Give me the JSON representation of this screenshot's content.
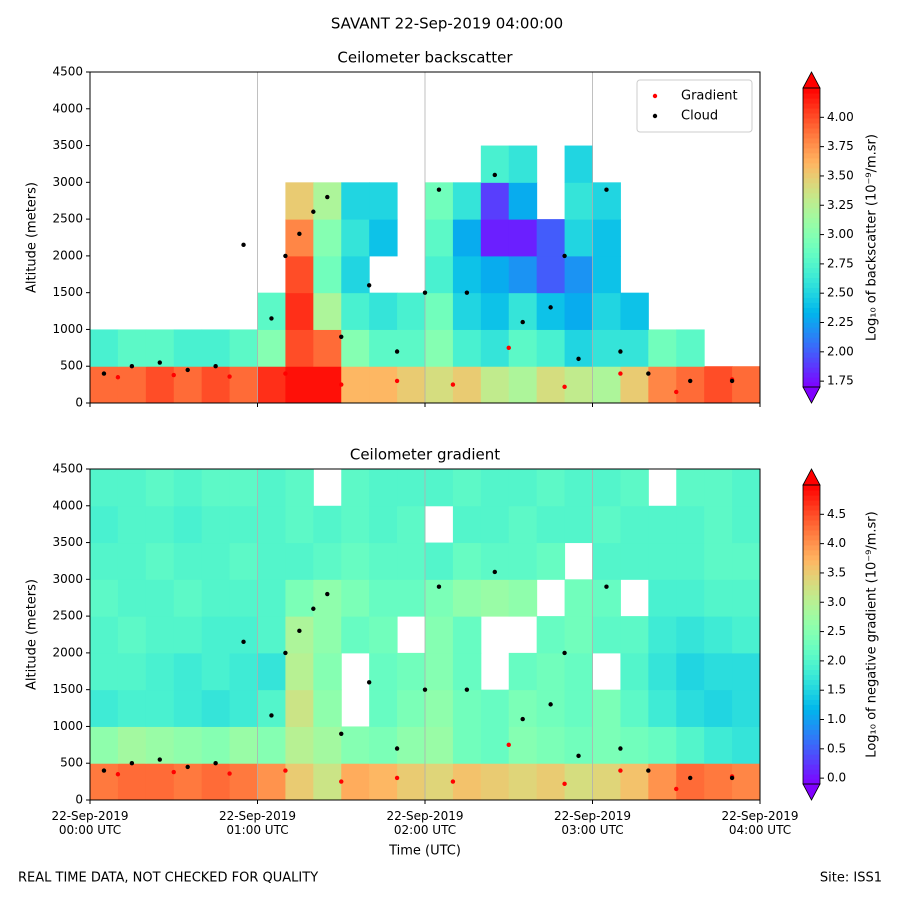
{
  "title": "SAVANT 22-Sep-2019 04:00:00",
  "footer_left": "REAL TIME DATA, NOT CHECKED FOR QUALITY",
  "footer_right": "Site: ISS1",
  "chart_data": [
    {
      "type": "heatmap",
      "title": "Ceilometer backscatter",
      "ylabel": "Altitude (meters)",
      "colormap": "rainbow",
      "colorbar_label": "Log₁₀ of backscatter (10⁻⁹/m.sr)",
      "zlim": [
        1.7,
        4.25
      ],
      "zticks": [
        1.75,
        2.0,
        2.25,
        2.5,
        2.75,
        3.0,
        3.25,
        3.5,
        3.75,
        4.0
      ],
      "xlim": [
        "2019-09-22T00:00",
        "2019-09-22T04:00"
      ],
      "xticks": [
        "2019-09-22T00:00",
        "2019-09-22T01:00",
        "2019-09-22T02:00",
        "2019-09-22T03:00",
        "2019-09-22T04:00"
      ],
      "grid": "x",
      "legend": "upper right",
      "ylim": [
        0,
        4500
      ],
      "yticks": [
        0,
        500,
        1000,
        1500,
        2000,
        2500,
        3000,
        3500,
        4000,
        4500
      ],
      "x": [
        "2019-09-22T00:00",
        "2019-09-22T00:10",
        "2019-09-22T00:20",
        "2019-09-22T00:30",
        "2019-09-22T00:40",
        "2019-09-22T00:50",
        "2019-09-22T01:00",
        "2019-09-22T01:10",
        "2019-09-22T01:20",
        "2019-09-22T01:30",
        "2019-09-22T01:40",
        "2019-09-22T01:50",
        "2019-09-22T02:00",
        "2019-09-22T02:10",
        "2019-09-22T02:20",
        "2019-09-22T02:30",
        "2019-09-22T02:40",
        "2019-09-22T02:50",
        "2019-09-22T03:00",
        "2019-09-22T03:10",
        "2019-09-22T03:20",
        "2019-09-22T03:30",
        "2019-09-22T03:40",
        "2019-09-22T03:50"
      ],
      "y": [
        0,
        500,
        1000,
        1500,
        2000,
        2500,
        3000,
        3500,
        4000
      ],
      "z": [
        [
          3.9,
          3.9,
          4.0,
          3.9,
          4.0,
          3.9,
          4.1,
          4.2,
          4.2,
          3.6,
          3.6,
          3.5,
          3.4,
          3.5,
          3.3,
          3.2,
          3.4,
          3.3,
          3.2,
          3.5,
          3.8,
          3.9,
          4.0,
          3.9
        ],
        [
          2.7,
          2.8,
          2.8,
          2.7,
          2.7,
          2.8,
          3.0,
          4.0,
          3.9,
          3.0,
          2.8,
          2.8,
          3.0,
          2.7,
          2.6,
          2.8,
          2.7,
          2.5,
          2.6,
          2.6,
          2.9,
          2.8,
          null,
          null
        ],
        [
          null,
          null,
          null,
          null,
          null,
          null,
          2.8,
          4.1,
          3.2,
          2.7,
          2.6,
          2.7,
          2.9,
          2.5,
          2.4,
          2.6,
          2.4,
          2.3,
          2.5,
          2.4,
          null,
          null,
          null,
          null
        ],
        [
          null,
          null,
          null,
          null,
          null,
          null,
          null,
          4.0,
          2.9,
          2.5,
          null,
          null,
          2.7,
          2.4,
          2.3,
          2.2,
          2.0,
          2.2,
          2.4,
          null,
          null,
          null,
          null,
          null
        ],
        [
          null,
          null,
          null,
          null,
          null,
          null,
          null,
          3.8,
          3.0,
          2.6,
          2.4,
          null,
          2.8,
          2.3,
          1.8,
          1.8,
          2.0,
          2.5,
          2.4,
          null,
          null,
          null,
          null,
          null
        ],
        [
          null,
          null,
          null,
          null,
          null,
          null,
          null,
          3.5,
          3.2,
          2.5,
          2.5,
          null,
          2.9,
          2.6,
          1.9,
          2.3,
          null,
          2.6,
          2.5,
          null,
          null,
          null,
          null,
          null
        ],
        [
          null,
          null,
          null,
          null,
          null,
          null,
          null,
          null,
          null,
          null,
          null,
          null,
          null,
          null,
          2.7,
          2.6,
          null,
          2.5,
          null,
          null,
          null,
          null,
          null,
          null
        ],
        [
          null,
          null,
          null,
          null,
          null,
          null,
          null,
          null,
          null,
          null,
          null,
          null,
          null,
          null,
          null,
          null,
          null,
          null,
          null,
          null,
          null,
          null,
          null,
          null
        ],
        [
          null,
          null,
          null,
          null,
          null,
          null,
          null,
          null,
          null,
          null,
          null,
          null,
          null,
          null,
          null,
          null,
          null,
          null,
          null,
          null,
          null,
          null,
          null,
          null
        ]
      ],
      "series": [
        {
          "name": "Gradient",
          "color": "#ff0000",
          "x": [
            "2019-09-22T00:10",
            "2019-09-22T00:30",
            "2019-09-22T00:50",
            "2019-09-22T01:10",
            "2019-09-22T01:30",
            "2019-09-22T01:50",
            "2019-09-22T02:10",
            "2019-09-22T02:30",
            "2019-09-22T02:50",
            "2019-09-22T03:10",
            "2019-09-22T03:30",
            "2019-09-22T03:50"
          ],
          "y": [
            350,
            380,
            360,
            400,
            250,
            300,
            250,
            750,
            220,
            400,
            150,
            320
          ]
        },
        {
          "name": "Cloud",
          "color": "#000000",
          "x": [
            "2019-09-22T00:05",
            "2019-09-22T00:15",
            "2019-09-22T00:25",
            "2019-09-22T00:35",
            "2019-09-22T00:45",
            "2019-09-22T00:55",
            "2019-09-22T01:05",
            "2019-09-22T01:10",
            "2019-09-22T01:15",
            "2019-09-22T01:20",
            "2019-09-22T01:25",
            "2019-09-22T01:30",
            "2019-09-22T01:40",
            "2019-09-22T01:50",
            "2019-09-22T02:00",
            "2019-09-22T02:05",
            "2019-09-22T02:15",
            "2019-09-22T02:25",
            "2019-09-22T02:35",
            "2019-09-22T02:45",
            "2019-09-22T02:50",
            "2019-09-22T02:55",
            "2019-09-22T03:05",
            "2019-09-22T03:10",
            "2019-09-22T03:20",
            "2019-09-22T03:35",
            "2019-09-22T03:50"
          ],
          "y": [
            400,
            500,
            550,
            450,
            500,
            2150,
            1150,
            2000,
            2300,
            2600,
            2800,
            900,
            1600,
            700,
            1500,
            2900,
            1500,
            3100,
            1100,
            1300,
            2000,
            600,
            2900,
            700,
            400,
            300,
            300
          ]
        }
      ]
    },
    {
      "type": "heatmap",
      "title": "Ceilometer gradient",
      "ylabel": "Altitude (meters)",
      "xlabel": "Time (UTC)",
      "colormap": "rainbow",
      "colorbar_label": "Log₁₀ of negative gradient (10⁻⁹/m.sr)",
      "zlim": [
        -0.1,
        5.0
      ],
      "zticks": [
        0.0,
        0.5,
        1.0,
        1.5,
        2.0,
        2.5,
        3.0,
        3.5,
        4.0,
        4.5
      ],
      "xlim": [
        "2019-09-22T00:00",
        "2019-09-22T04:00"
      ],
      "xticks": [
        {
          "value": "2019-09-22T00:00",
          "label": "22-Sep-2019\n00:00 UTC"
        },
        {
          "value": "2019-09-22T01:00",
          "label": "22-Sep-2019\n01:00 UTC"
        },
        {
          "value": "2019-09-22T02:00",
          "label": "22-Sep-2019\n02:00 UTC"
        },
        {
          "value": "2019-09-22T03:00",
          "label": "22-Sep-2019\n03:00 UTC"
        },
        {
          "value": "2019-09-22T04:00",
          "label": "22-Sep-2019\n04:00 UTC"
        }
      ],
      "grid": "x",
      "ylim": [
        0,
        4500
      ],
      "yticks": [
        0,
        500,
        1000,
        1500,
        2000,
        2500,
        3000,
        3500,
        4000,
        4500
      ],
      "x": [
        "2019-09-22T00:00",
        "2019-09-22T00:10",
        "2019-09-22T00:20",
        "2019-09-22T00:30",
        "2019-09-22T00:40",
        "2019-09-22T00:50",
        "2019-09-22T01:00",
        "2019-09-22T01:10",
        "2019-09-22T01:20",
        "2019-09-22T01:30",
        "2019-09-22T01:40",
        "2019-09-22T01:50",
        "2019-09-22T02:00",
        "2019-09-22T02:10",
        "2019-09-22T02:20",
        "2019-09-22T02:30",
        "2019-09-22T02:40",
        "2019-09-22T02:50",
        "2019-09-22T03:00",
        "2019-09-22T03:10",
        "2019-09-22T03:20",
        "2019-09-22T03:30",
        "2019-09-22T03:40",
        "2019-09-22T03:50"
      ],
      "y": [
        0,
        500,
        1000,
        1500,
        2000,
        2500,
        3000,
        3500,
        4000
      ],
      "z": [
        [
          4.2,
          4.3,
          4.3,
          4.2,
          4.3,
          4.2,
          4.0,
          3.5,
          3.2,
          3.8,
          3.7,
          3.5,
          3.4,
          3.6,
          3.5,
          3.4,
          3.5,
          3.3,
          3.4,
          3.6,
          4.0,
          4.3,
          4.2,
          4.1
        ],
        [
          2.6,
          2.8,
          2.7,
          2.6,
          2.5,
          2.7,
          2.5,
          3.0,
          2.8,
          2.5,
          2.4,
          2.6,
          2.7,
          2.3,
          2.2,
          2.5,
          2.4,
          2.3,
          2.4,
          2.3,
          2.2,
          2.0,
          1.8,
          1.7
        ],
        [
          1.8,
          1.9,
          1.9,
          1.8,
          1.7,
          1.8,
          2.0,
          3.2,
          2.6,
          null,
          2.2,
          2.4,
          2.6,
          2.3,
          2.2,
          2.4,
          2.3,
          2.2,
          2.4,
          2.1,
          1.8,
          1.6,
          1.5,
          1.6
        ],
        [
          2.0,
          2.0,
          1.9,
          1.8,
          1.9,
          1.8,
          1.7,
          3.0,
          2.5,
          null,
          2.2,
          2.3,
          2.5,
          2.2,
          null,
          2.2,
          2.3,
          2.2,
          null,
          2.0,
          1.7,
          1.5,
          1.6,
          1.6
        ],
        [
          2.0,
          2.1,
          2.0,
          2.0,
          1.9,
          1.9,
          2.0,
          2.9,
          2.6,
          2.2,
          2.3,
          null,
          2.5,
          2.2,
          null,
          null,
          2.2,
          2.3,
          2.1,
          2.1,
          1.8,
          1.7,
          1.8,
          1.9
        ],
        [
          2.1,
          2.0,
          2.0,
          2.1,
          2.0,
          2.0,
          2.0,
          2.4,
          2.6,
          2.4,
          2.2,
          2.2,
          2.4,
          2.6,
          2.7,
          2.6,
          null,
          2.3,
          2.2,
          null,
          1.9,
          1.9,
          2.0,
          2.0
        ],
        [
          2.0,
          2.0,
          2.1,
          2.0,
          2.0,
          2.1,
          2.0,
          2.0,
          2.1,
          2.2,
          2.1,
          2.1,
          2.0,
          2.2,
          2.1,
          2.1,
          2.2,
          null,
          2.0,
          2.0,
          2.0,
          2.0,
          2.1,
          2.1
        ],
        [
          1.9,
          2.0,
          2.0,
          1.9,
          2.0,
          2.0,
          2.0,
          2.1,
          2.0,
          2.1,
          2.0,
          2.1,
          null,
          2.0,
          2.0,
          2.1,
          2.0,
          2.0,
          2.1,
          2.0,
          2.0,
          2.0,
          2.1,
          2.0
        ],
        [
          2.0,
          2.0,
          2.1,
          2.0,
          2.1,
          2.1,
          2.0,
          2.1,
          null,
          2.1,
          2.0,
          2.0,
          2.0,
          2.1,
          2.0,
          2.0,
          2.1,
          2.0,
          2.0,
          2.1,
          null,
          2.1,
          2.1,
          2.0
        ]
      ],
      "series": [
        {
          "name": "Gradient",
          "color": "#ff0000",
          "x": [
            "2019-09-22T00:10",
            "2019-09-22T00:30",
            "2019-09-22T00:50",
            "2019-09-22T01:10",
            "2019-09-22T01:30",
            "2019-09-22T01:50",
            "2019-09-22T02:10",
            "2019-09-22T02:30",
            "2019-09-22T02:50",
            "2019-09-22T03:10",
            "2019-09-22T03:30",
            "2019-09-22T03:50"
          ],
          "y": [
            350,
            380,
            360,
            400,
            250,
            300,
            250,
            750,
            220,
            400,
            150,
            320
          ]
        },
        {
          "name": "Cloud",
          "color": "#000000",
          "x": [
            "2019-09-22T00:05",
            "2019-09-22T00:15",
            "2019-09-22T00:25",
            "2019-09-22T00:35",
            "2019-09-22T00:45",
            "2019-09-22T00:55",
            "2019-09-22T01:05",
            "2019-09-22T01:10",
            "2019-09-22T01:15",
            "2019-09-22T01:20",
            "2019-09-22T01:25",
            "2019-09-22T01:30",
            "2019-09-22T01:40",
            "2019-09-22T01:50",
            "2019-09-22T02:00",
            "2019-09-22T02:05",
            "2019-09-22T02:15",
            "2019-09-22T02:25",
            "2019-09-22T02:35",
            "2019-09-22T02:45",
            "2019-09-22T02:50",
            "2019-09-22T02:55",
            "2019-09-22T03:05",
            "2019-09-22T03:10",
            "2019-09-22T03:20",
            "2019-09-22T03:35",
            "2019-09-22T03:50"
          ],
          "y": [
            400,
            500,
            550,
            450,
            500,
            2150,
            1150,
            2000,
            2300,
            2600,
            2800,
            900,
            1600,
            700,
            1500,
            2900,
            1500,
            3100,
            1100,
            1300,
            2000,
            600,
            2900,
            700,
            400,
            300,
            300
          ]
        }
      ]
    }
  ]
}
